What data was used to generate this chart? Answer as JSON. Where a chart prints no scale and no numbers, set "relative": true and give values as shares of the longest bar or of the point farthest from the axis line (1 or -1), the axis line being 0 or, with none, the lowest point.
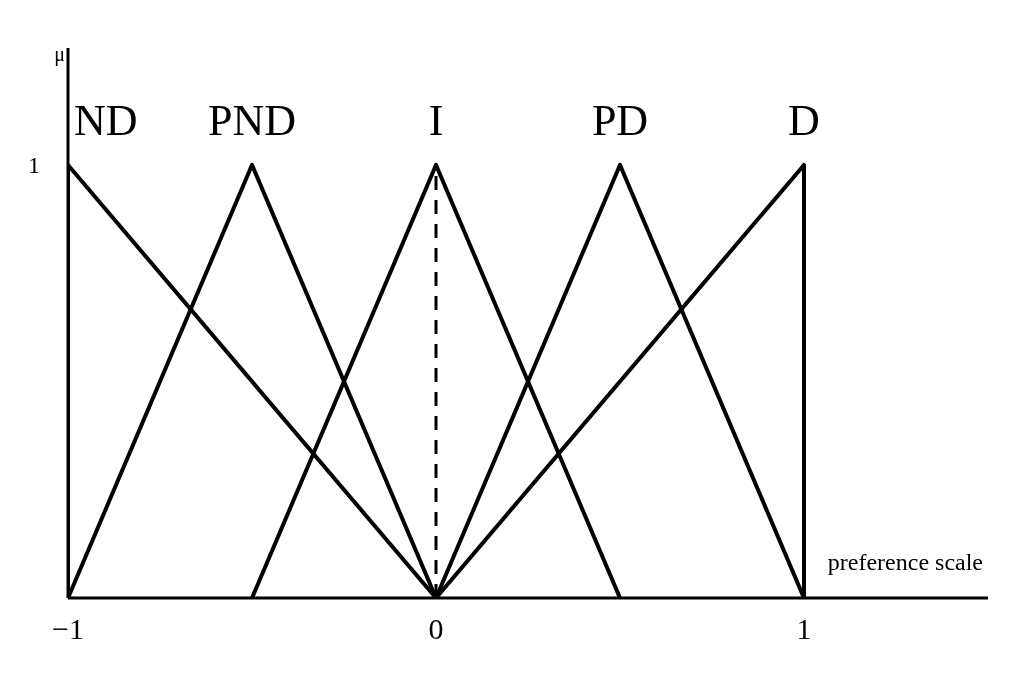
{
  "chart_data": {
    "type": "line",
    "xlabel": "preference scale",
    "ylabel": "μ",
    "series": [
      {
        "name": "ND",
        "color": "#000000",
        "x": [
          -1,
          -1,
          0
        ],
        "values": [
          0,
          1,
          0
        ]
      },
      {
        "name": "PND",
        "color": "#000000",
        "x": [
          -1,
          -0.5,
          0
        ],
        "values": [
          0,
          1,
          0
        ]
      },
      {
        "name": "I",
        "color": "#000000",
        "x": [
          -0.5,
          0,
          0.5
        ],
        "values": [
          0,
          1,
          0
        ]
      },
      {
        "name": "PD",
        "color": "#000000",
        "x": [
          0,
          0.5,
          1
        ],
        "values": [
          0,
          1,
          0
        ]
      },
      {
        "name": "D",
        "color": "#000000",
        "x": [
          0,
          1,
          1
        ],
        "values": [
          0,
          1,
          0
        ]
      }
    ],
    "xlim": [
      -1,
      1.5
    ],
    "xticks": [
      {
        "value": -1,
        "label": "−1"
      },
      0,
      1
    ],
    "relative": true,
    "annotations": [
      "1"
    ],
    "ref_lines": [
      {
        "axis": "x",
        "value": 0,
        "label": null,
        "color": "#000000",
        "line_style": "dashed"
      }
    ],
    "grid": false,
    "legend": false,
    "marker": "none",
    "line_style": "solid"
  }
}
